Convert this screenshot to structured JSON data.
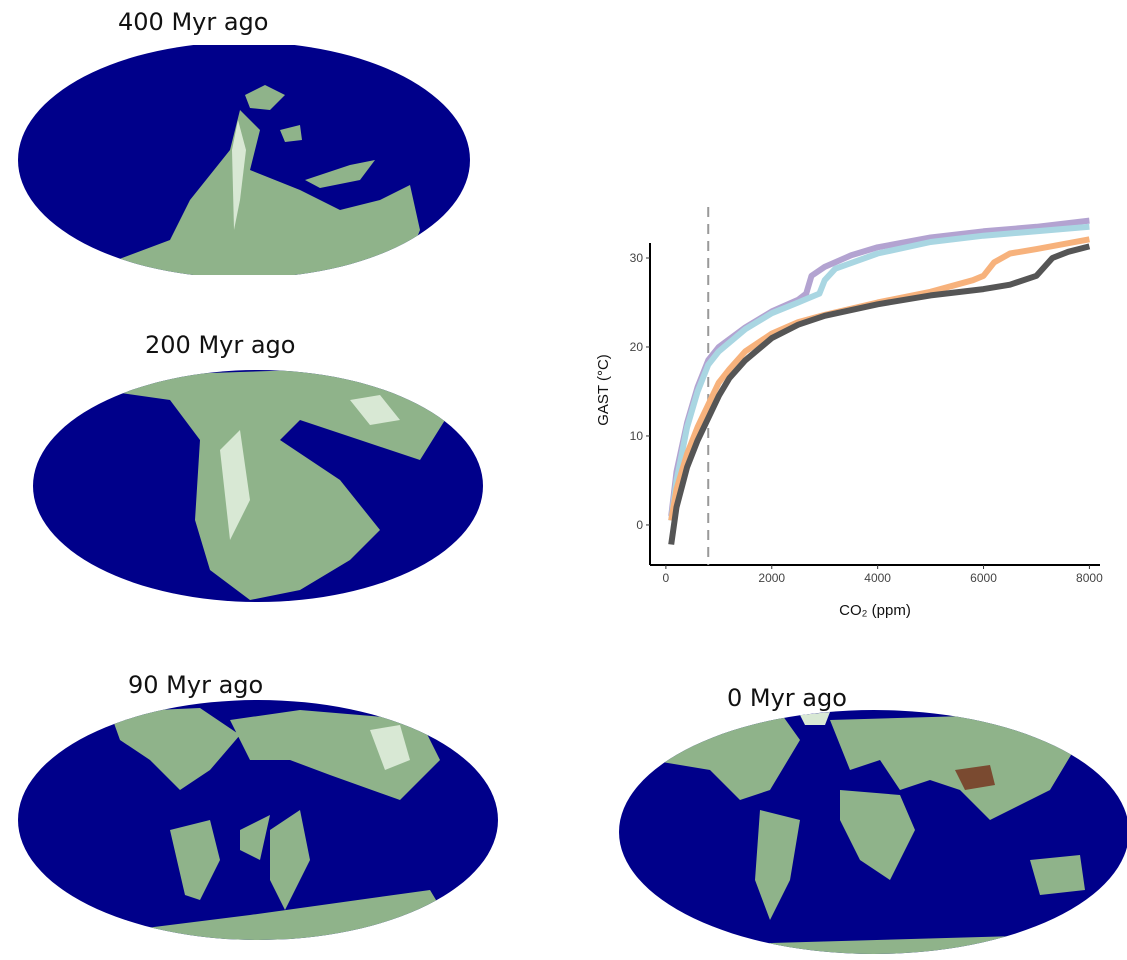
{
  "maps": [
    {
      "label": "400 Myr ago"
    },
    {
      "label": "200 Myr ago"
    },
    {
      "label": "90 Myr ago"
    },
    {
      "label": "0 Myr ago"
    }
  ],
  "chart_data": {
    "type": "line",
    "xlabel": "CO₂ (ppm)",
    "ylabel": "GAST (°C)",
    "xlim": [
      -300,
      8200
    ],
    "ylim": [
      -4.5,
      35
    ],
    "xticks": [
      0,
      2000,
      4000,
      6000,
      8000
    ],
    "yticks": [
      0,
      10,
      20,
      30
    ],
    "reference_line_x": 800,
    "series": [
      {
        "color": "#b3a3d1",
        "x": [
          100,
          200,
          400,
          600,
          800,
          1000,
          1500,
          2000,
          2500,
          2650,
          2750,
          3000,
          3500,
          4000,
          5000,
          6000,
          7000,
          8000
        ],
        "values": [
          1,
          6,
          11.5,
          15.5,
          18.5,
          20,
          22.2,
          24,
          25.3,
          26,
          28,
          29,
          30.3,
          31.2,
          32.3,
          33,
          33.5,
          34.2
        ]
      },
      {
        "color": "#a9d6e2",
        "x": [
          100,
          200,
          400,
          600,
          800,
          1000,
          1500,
          2000,
          2500,
          2700,
          2900,
          3000,
          3200,
          4000,
          5000,
          6000,
          7000,
          8000
        ],
        "values": [
          0.5,
          5,
          11,
          15,
          18,
          19.5,
          22,
          23.8,
          25,
          25.5,
          26,
          27.5,
          28.8,
          30.5,
          31.8,
          32.5,
          33,
          33.5
        ]
      },
      {
        "color": "#f7b27c",
        "x": [
          100,
          200,
          400,
          600,
          800,
          1000,
          1200,
          1500,
          2000,
          2500,
          3000,
          4000,
          5000,
          5800,
          6000,
          6200,
          6500,
          7000,
          8000
        ],
        "values": [
          0.5,
          4,
          8,
          11,
          13.5,
          16,
          17.5,
          19.5,
          21.5,
          22.8,
          23.6,
          25,
          26.2,
          27.5,
          28,
          29.5,
          30.5,
          31,
          32.1
        ]
      },
      {
        "color": "#555555",
        "x": [
          100,
          200,
          400,
          600,
          800,
          1000,
          1200,
          1500,
          2000,
          2500,
          3000,
          4000,
          5000,
          6000,
          6500,
          7000,
          7300,
          7600,
          8000
        ],
        "values": [
          -2.2,
          2,
          6.5,
          9.5,
          12,
          14.5,
          16.5,
          18.5,
          21,
          22.5,
          23.5,
          24.8,
          25.8,
          26.5,
          27,
          28,
          30,
          30.7,
          31.3
        ]
      }
    ]
  }
}
